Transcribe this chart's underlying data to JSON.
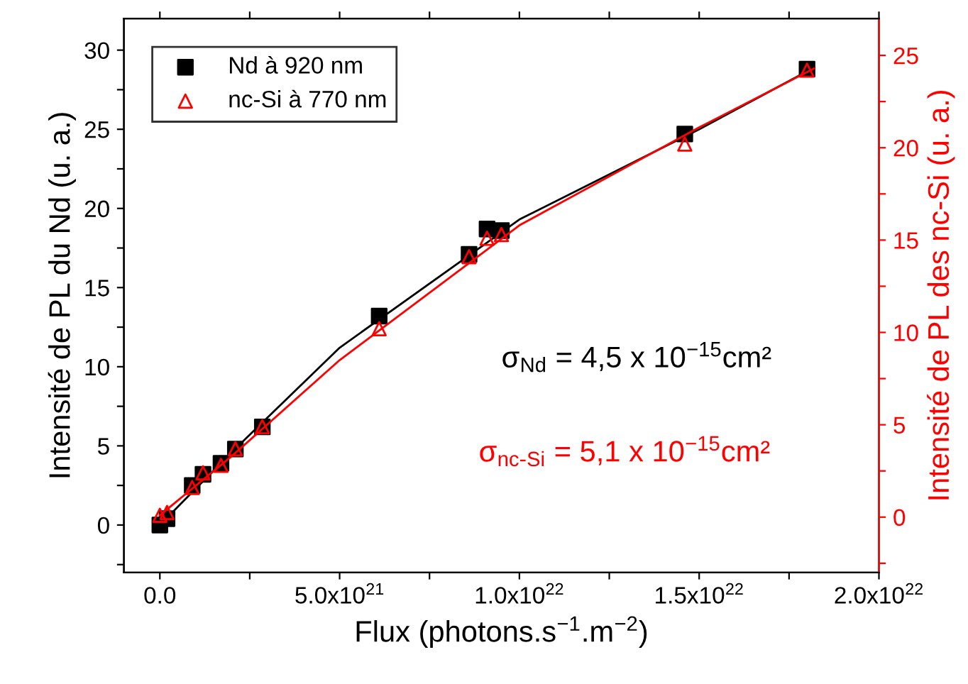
{
  "chart_data": {
    "type": "scatter",
    "xlabel": "Flux (photons.s$^{−1}$.m$^{−2}$)",
    "ylabel": "Intensité de PL du Nd (u. a.)",
    "y2label": "Intensité de PL des nc-Si (u. a.)",
    "xlim": [
      -1e+21,
      2e+22
    ],
    "xticks": [
      {
        "value": 0,
        "label": "0.0"
      },
      {
        "value": 2.5e+21,
        "label": null
      },
      {
        "value": 5e+21,
        "label": "5.0x10$^{21}$"
      },
      {
        "value": 7.5e+21,
        "label": null
      },
      {
        "value": 1e+22,
        "label": "1.0x10$^{22}$"
      },
      {
        "value": 1.25e+22,
        "label": null
      },
      {
        "value": 1.5e+22,
        "label": "1.5x10$^{22}$"
      },
      {
        "value": 1.75e+22,
        "label": null
      },
      {
        "value": 2e+22,
        "label": "2.0x10$^{22}$"
      }
    ],
    "ylim": [
      -3,
      32
    ],
    "yticks": [
      {
        "value": -2.5,
        "label": null
      },
      0,
      {
        "value": 2.5,
        "label": null
      },
      5,
      {
        "value": 7.5,
        "label": null
      },
      10,
      {
        "value": 12.5,
        "label": null
      },
      15,
      {
        "value": 17.5,
        "label": null
      },
      20,
      {
        "value": 22.5,
        "label": null
      },
      25,
      {
        "value": 27.5,
        "label": null
      },
      30
    ],
    "y2lim": [
      -3,
      27
    ],
    "y2ticks": [
      {
        "value": -2.5,
        "label": null
      },
      0,
      {
        "value": 2.5,
        "label": null
      },
      5,
      {
        "value": 7.5,
        "label": null
      },
      10,
      {
        "value": 12.5,
        "label": null
      },
      15,
      {
        "value": 17.5,
        "label": null
      },
      20,
      {
        "value": 22.5,
        "label": null
      },
      25
    ],
    "legend": "top left",
    "grid": false,
    "annotations": [
      "σ$_{Nd}$ = 4,5 x 10$^{−15}$cm²",
      "σ$_{nc-Si}$ = 5,1 x 10$^{−15}$cm²"
    ],
    "series": [
      {
        "name": "Nd à 920 nm",
        "color": "#000000",
        "marker": "square",
        "axis": "y",
        "x": [
          0,
          2e+20,
          9e+20,
          1.2e+21,
          1.7e+21,
          2.1e+21,
          2.85e+21,
          6.1e+21,
          8.6e+21,
          9.1e+21,
          9.5e+21,
          1.46e+22,
          1.8e+22
        ],
        "values": [
          0,
          0.4,
          2.5,
          3.2,
          3.9,
          4.8,
          6.2,
          13.2,
          17.1,
          18.7,
          18.6,
          24.7,
          28.8
        ]
      },
      {
        "name": "nc-Si à 770 nm",
        "color": "#ff0000",
        "marker": "triangle",
        "axis": "y2",
        "x": [
          0,
          2e+20,
          9e+20,
          1.2e+21,
          1.7e+21,
          2.1e+21,
          2.85e+21,
          6.1e+21,
          8.6e+21,
          9.1e+21,
          9.5e+21,
          1.46e+22,
          1.8e+22
        ],
        "values": [
          0.1,
          0.25,
          1.6,
          2.4,
          2.8,
          3.7,
          4.9,
          10.2,
          14.1,
          15.1,
          15.3,
          20.2,
          24.2
        ]
      },
      {
        "type": "line",
        "color": "#000000",
        "axis": "y",
        "x": [
          0,
          2e+21,
          5e+21,
          1e+22,
          1.5e+22,
          1.82e+22
        ],
        "values": [
          0,
          4.6,
          11.2,
          19.3,
          25.0,
          28.9
        ]
      },
      {
        "type": "line",
        "color": "#ff0000",
        "axis": "y2",
        "x": [
          0,
          2e+21,
          5e+21,
          1e+22,
          1.5e+22,
          1.82e+22
        ],
        "values": [
          0.1,
          3.3,
          8.5,
          15.8,
          21.1,
          24.3
        ]
      }
    ]
  }
}
